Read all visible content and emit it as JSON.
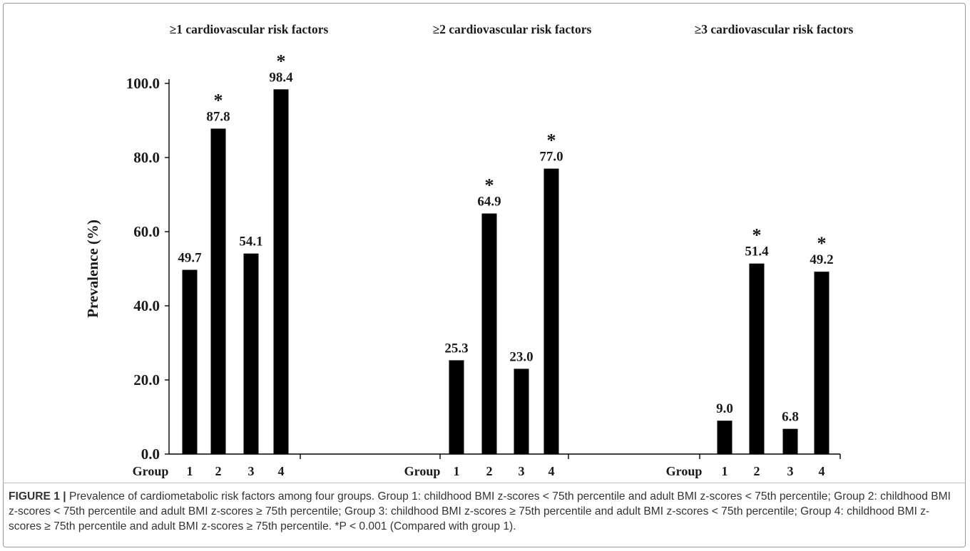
{
  "chart_data": {
    "type": "bar",
    "ylabel": "Prevalence (%)",
    "ylim": [
      0,
      100
    ],
    "yticks": [
      "0.0",
      "20.0",
      "40.0",
      "60.0",
      "80.0",
      "100.0"
    ],
    "bar_color": "#000000",
    "panels": [
      {
        "title": "≥1 cardiovascular risk factors",
        "group_label": "Group",
        "categories": [
          "1",
          "2",
          "3",
          "4"
        ],
        "values": [
          49.7,
          87.8,
          54.1,
          98.4
        ],
        "value_labels": [
          "49.7",
          "87.8",
          "54.1",
          "98.4"
        ],
        "significant": [
          false,
          true,
          false,
          true
        ]
      },
      {
        "title": "≥2 cardiovascular risk factors",
        "group_label": "Group",
        "categories": [
          "1",
          "2",
          "3",
          "4"
        ],
        "values": [
          25.3,
          64.9,
          23.0,
          77.0
        ],
        "value_labels": [
          "25.3",
          "64.9",
          "23.0",
          "77.0"
        ],
        "significant": [
          false,
          true,
          false,
          true
        ]
      },
      {
        "title": "≥3 cardiovascular risk factors",
        "group_label": "Group",
        "categories": [
          "1",
          "2",
          "3",
          "4"
        ],
        "values": [
          9.0,
          51.4,
          6.8,
          49.2
        ],
        "value_labels": [
          "9.0",
          "51.4",
          "6.8",
          "49.2"
        ],
        "significant": [
          false,
          true,
          false,
          true
        ]
      }
    ],
    "significance_marker": "*"
  },
  "caption": {
    "label": "FIGURE 1 |",
    "text": " Prevalence of cardiometabolic risk factors among four groups. Group 1: childhood BMI z-scores < 75th percentile and adult BMI z-scores < 75th percentile; Group 2: childhood BMI z-scores < 75th percentile and adult BMI z-scores ≥ 75th percentile; Group 3: childhood BMI z-scores ≥ 75th percentile and adult BMI z-scores < 75th percentile; Group 4: childhood BMI z-scores ≥ 75th percentile and adult BMI z-scores ≥ 75th percentile. *P < 0.001 (Compared with group 1)."
  }
}
